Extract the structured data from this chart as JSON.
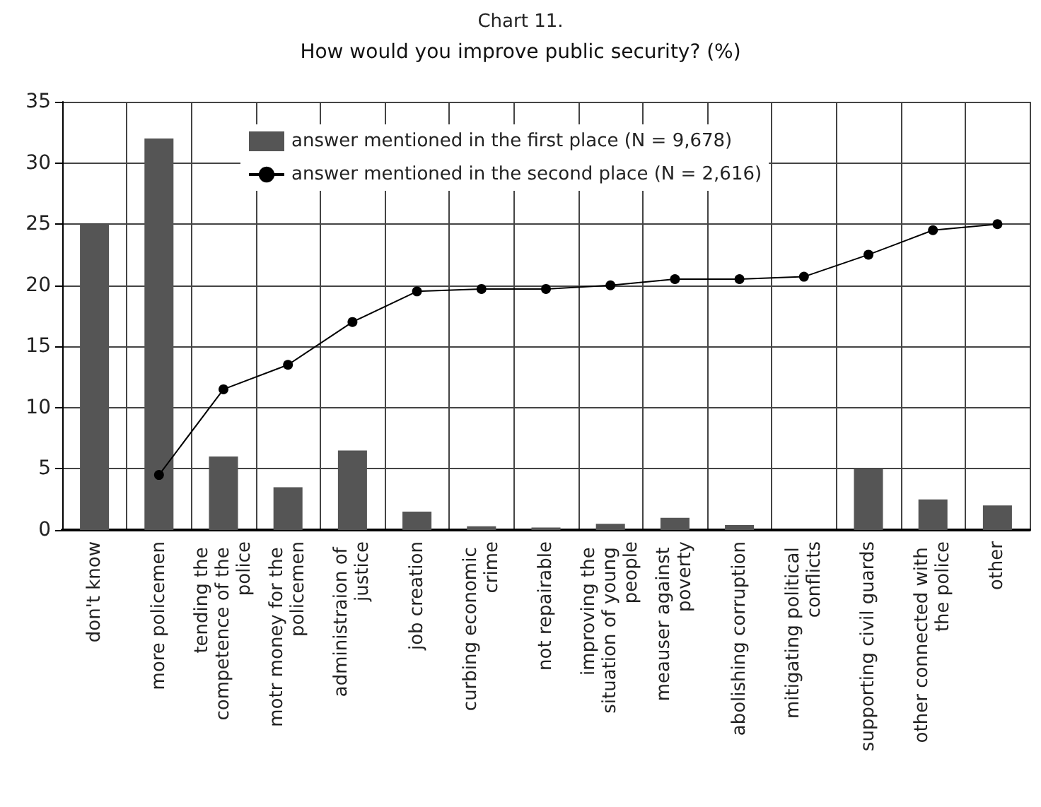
{
  "chart_data": {
    "type": "bar",
    "title": "Chart 11.",
    "subtitle": "How would you improve public security? (%)",
    "categories": [
      "don't know",
      "more policemen",
      "tending the competence of the police",
      "motr money for the policemen",
      "administraion of justice",
      "job creation",
      "curbing economic crime",
      "not repairable",
      "improving the situation of young people",
      "meauser against poverty",
      "abolishing corruption",
      "mitigating political conflicts",
      "supporting civil guards",
      "other connected with the police",
      "other"
    ],
    "series": [
      {
        "name": "answer mentioned in the first place (N = 9,678)",
        "color": "#555555",
        "values": [
          25,
          32,
          6,
          3.5,
          6.5,
          1.5,
          0.3,
          0.2,
          0.5,
          1,
          0.4,
          0,
          5,
          2.5,
          2
        ]
      },
      {
        "name": "answer mentioned in the second place (N = 2,616)",
        "type": "line",
        "color": "#000000",
        "values": [
          null,
          4.5,
          11.5,
          13.5,
          17,
          19.5,
          19.7,
          19.7,
          20,
          20.5,
          20.5,
          20.7,
          22.5,
          24.5,
          25
        ]
      }
    ],
    "ylim": [
      0,
      35
    ],
    "yticks": [
      0,
      5,
      10,
      15,
      20,
      25,
      30,
      35
    ],
    "grid": true,
    "legend": "top",
    "marker": "circle"
  }
}
